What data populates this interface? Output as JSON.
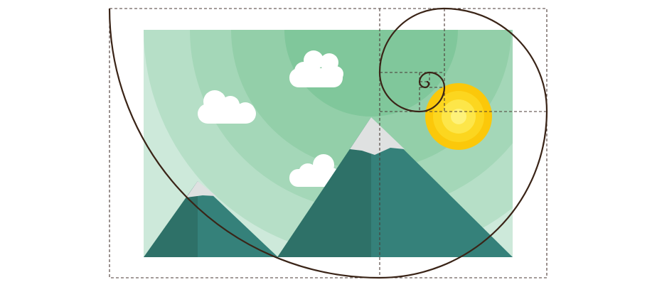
{
  "diagram": {
    "subject": "golden-ratio-composition",
    "colors": {
      "background": "#ffffff",
      "sky_ring_1": "#cde9da",
      "sky_ring_2": "#b6dfc7",
      "sky_ring_3": "#a4d7b8",
      "sky_ring_4": "#93cfa9",
      "sky_ring_5": "#80c79b",
      "mountain_dark": "#2e7168",
      "mountain_light": "#35817a",
      "snow": "#dfe1e1",
      "cloud": "#ffffff",
      "sun_outer": "#fbc80a",
      "sun_mid": "#fcd61f",
      "sun_inner": "#fde649",
      "sun_core": "#fef27a",
      "guide_line": "#4a3a34",
      "spiral": "#3a2417"
    },
    "elements": [
      "background-panel",
      "sky-gradient-rings",
      "sun",
      "cloud-left",
      "cloud-top",
      "cloud-middle",
      "mountain-small",
      "mountain-large",
      "golden-section-guides",
      "golden-spiral"
    ]
  }
}
